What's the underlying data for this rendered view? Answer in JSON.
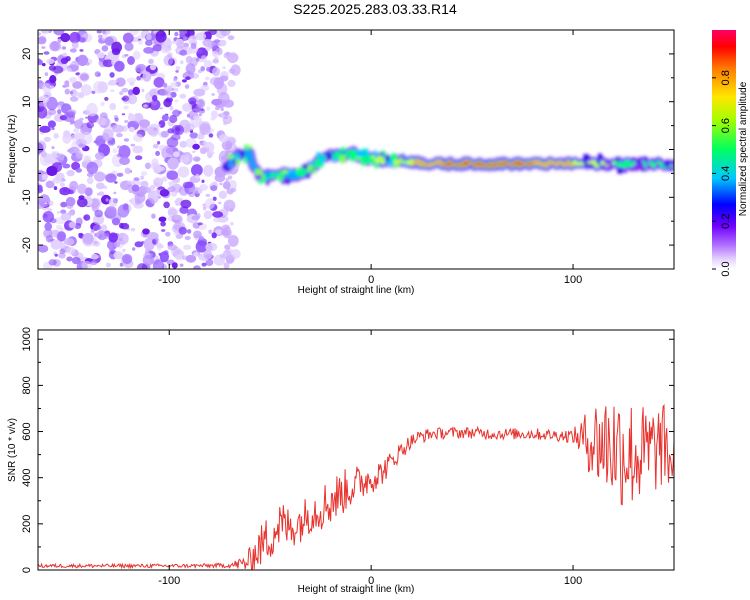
{
  "title": "S225.2025.283.03.33.R14",
  "colors": {
    "snr_line": "#e8332e",
    "noise": "#7a1cf0",
    "track_edge": "#4a10e8",
    "track_core": "#d40000",
    "frame": "#000000"
  },
  "chart_data": [
    {
      "type": "heatmap",
      "name": "spectrogram",
      "title": "S225.2025.283.03.33.R14",
      "xlabel": "Height of straight line (km)",
      "ylabel": "Frequency (Hz)",
      "xlim": [
        -165,
        150
      ],
      "ylim": [
        -25,
        25
      ],
      "xticks": [
        -100,
        0,
        100
      ],
      "yticks": [
        -20,
        -10,
        0,
        10,
        20
      ],
      "noise_region_x": [
        -165,
        -72
      ],
      "ridge": {
        "x": [
          -72,
          -68,
          -64,
          -60,
          -58,
          -55,
          -50,
          -45,
          -40,
          -35,
          -30,
          -25,
          -20,
          -15,
          -10,
          -5,
          0,
          10,
          20,
          30,
          40,
          60,
          80,
          100,
          120,
          140,
          150
        ],
        "freq": [
          -4,
          -2,
          -1,
          -0.5,
          -4,
          -5.5,
          -5.5,
          -5,
          -5.5,
          -5,
          -4,
          -2,
          -1,
          -1.5,
          -0.5,
          -1.5,
          -2,
          -2.5,
          -2.5,
          -3,
          -3,
          -3,
          -3,
          -3,
          -3,
          -3,
          -3
        ],
        "amplitude": [
          0.3,
          0.4,
          0.45,
          0.4,
          0.35,
          0.4,
          0.45,
          0.5,
          0.4,
          0.45,
          0.5,
          0.5,
          0.55,
          0.5,
          0.6,
          0.55,
          0.6,
          0.65,
          0.8,
          0.85,
          0.95,
          1.0,
          0.9,
          0.8,
          0.6,
          0.5,
          0.45
        ]
      },
      "colorbar": {
        "label": "Normalized spectral amplitude",
        "range": [
          0,
          1
        ],
        "ticks": [
          "0.0",
          "0.2",
          "0.4",
          "0.6",
          "0.8"
        ]
      }
    },
    {
      "type": "line",
      "name": "snr",
      "xlabel": "Height of straight line (km)",
      "ylabel": "SNR (10 * v/v)",
      "xlim": [
        -165,
        150
      ],
      "ylim": [
        0,
        1040
      ],
      "xticks": [
        -100,
        0,
        100
      ],
      "yticks": [
        0,
        200,
        400,
        600,
        800,
        1000
      ],
      "series": [
        {
          "name": "SNR",
          "x": [
            -165,
            -150,
            -130,
            -110,
            -90,
            -70,
            -62,
            -58,
            -55,
            -50,
            -45,
            -40,
            -35,
            -30,
            -25,
            -20,
            -15,
            -10,
            -5,
            0,
            5,
            10,
            15,
            20,
            25,
            30,
            40,
            50,
            60,
            70,
            80,
            90,
            100,
            105,
            110,
            115,
            120,
            125,
            130,
            135,
            140,
            145,
            150
          ],
          "mean": [
            18,
            18,
            18,
            18,
            18,
            20,
            30,
            60,
            100,
            150,
            200,
            180,
            210,
            250,
            270,
            300,
            330,
            360,
            380,
            400,
            420,
            470,
            520,
            560,
            580,
            590,
            595,
            595,
            590,
            590,
            590,
            585,
            580,
            570,
            560,
            550,
            540,
            520,
            500,
            500,
            520,
            540,
            450
          ],
          "spread": [
            8,
            8,
            8,
            8,
            8,
            10,
            40,
            70,
            90,
            110,
            110,
            90,
            90,
            90,
            100,
            110,
            100,
            90,
            80,
            70,
            60,
            45,
            40,
            30,
            30,
            25,
            25,
            25,
            25,
            25,
            25,
            25,
            30,
            100,
            180,
            230,
            250,
            260,
            240,
            220,
            200,
            180,
            150
          ]
        }
      ]
    }
  ]
}
